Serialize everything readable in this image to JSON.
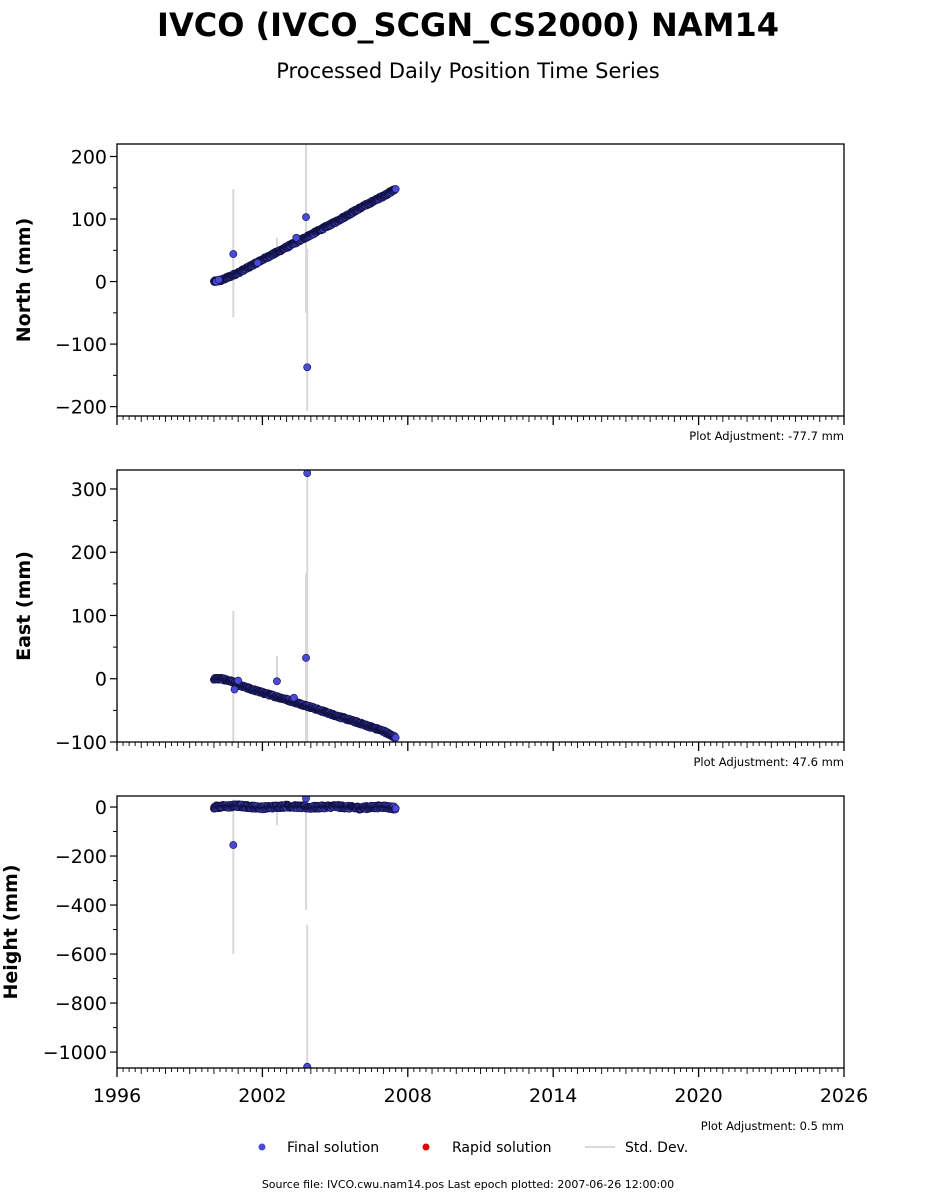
{
  "title": "IVCO (IVCO_SCGN_CS2000) NAM14",
  "subtitle": "Processed Daily Position Time Series",
  "legend": {
    "final": "Final solution",
    "rapid": "Rapid solution",
    "stddev": "Std. Dev."
  },
  "footer": "Source file: IVCO.cwu.nam14.pos  Last epoch plotted: 2007-06-26 12:00:00",
  "colors": {
    "final": "#4a4ad8",
    "final_edge": "#101040",
    "rapid": "#dd0000",
    "stddev": "#d8d8d8"
  },
  "chart_data": [
    {
      "type": "scatter",
      "ylabel": "North (mm)",
      "adjustment": "Plot Adjustment: -77.7 mm",
      "xlim": [
        1996,
        2026
      ],
      "ylim": [
        -215,
        220
      ],
      "yticks": [
        -200,
        -100,
        0,
        100,
        200
      ],
      "yticklabels": [
        "−200",
        "−100",
        "0",
        "100",
        "200"
      ],
      "trend": [
        [
          2000.0,
          0
        ],
        [
          2000.3,
          2
        ],
        [
          2001.0,
          14
        ],
        [
          2002.0,
          35
        ],
        [
          2003.0,
          55
        ],
        [
          2004.0,
          75
        ],
        [
          2005.0,
          95
        ],
        [
          2006.0,
          117
        ],
        [
          2007.0,
          137
        ],
        [
          2007.5,
          148
        ]
      ],
      "outliers": [
        [
          2000.1,
          0
        ],
        [
          2000.2,
          3
        ],
        [
          2000.8,
          44
        ],
        [
          2001.8,
          30
        ],
        [
          2003.4,
          70
        ],
        [
          2003.8,
          103
        ],
        [
          2003.85,
          -137
        ]
      ],
      "errorbars": [
        [
          2000.8,
          -57,
          148
        ],
        [
          2002.6,
          38,
          70
        ],
        [
          2003.8,
          -50,
          220
        ],
        [
          2003.85,
          -207,
          52
        ]
      ]
    },
    {
      "type": "scatter",
      "ylabel": "East (mm)",
      "adjustment": "Plot Adjustment: 47.6 mm",
      "xlim": [
        1996,
        2026
      ],
      "ylim": [
        -100,
        330
      ],
      "yticks": [
        -100,
        0,
        100,
        200,
        300
      ],
      "yticklabels": [
        "−100",
        "0",
        "100",
        "200",
        "300"
      ],
      "trend": [
        [
          2000.0,
          0
        ],
        [
          2000.3,
          0
        ],
        [
          2000.8,
          -5
        ],
        [
          2001.0,
          -10
        ],
        [
          2002.0,
          -22
        ],
        [
          2003.0,
          -33
        ],
        [
          2004.0,
          -45
        ],
        [
          2005.0,
          -58
        ],
        [
          2006.0,
          -70
        ],
        [
          2007.0,
          -83
        ],
        [
          2007.5,
          -93
        ]
      ],
      "outliers": [
        [
          2000.85,
          -17
        ],
        [
          2001.0,
          -3
        ],
        [
          2002.6,
          -4
        ],
        [
          2003.3,
          -30
        ],
        [
          2003.8,
          33
        ],
        [
          2003.85,
          325
        ]
      ],
      "errorbars": [
        [
          2000.8,
          -100,
          107
        ],
        [
          2002.6,
          -10,
          36
        ],
        [
          2003.8,
          -100,
          166
        ],
        [
          2003.85,
          -100,
          330
        ]
      ]
    },
    {
      "type": "scatter",
      "ylabel": "Height (mm)",
      "adjustment": "Plot Adjustment: 0.5 mm",
      "xlim": [
        1996,
        2026
      ],
      "ylim": [
        -1065,
        45
      ],
      "yticks": [
        -1000,
        -800,
        -600,
        -400,
        -200,
        0
      ],
      "yticklabels": [
        "−1000",
        "−800",
        "−600",
        "−400",
        "−200",
        "0"
      ],
      "xticks": [
        1996,
        2002,
        2008,
        2014,
        2020,
        2026
      ],
      "xticklabels": [
        "1996",
        "2002",
        "2008",
        "2014",
        "2020",
        "2026"
      ],
      "trend": [
        [
          2000.0,
          0
        ],
        [
          2001.0,
          5
        ],
        [
          2002.0,
          -3
        ],
        [
          2003.0,
          4
        ],
        [
          2004.0,
          -2
        ],
        [
          2005.0,
          3
        ],
        [
          2006.0,
          -4
        ],
        [
          2007.0,
          2
        ],
        [
          2007.5,
          -5
        ]
      ],
      "outliers": [
        [
          2000.8,
          -155
        ],
        [
          2003.8,
          35
        ],
        [
          2003.85,
          -1060
        ]
      ],
      "errorbars": [
        [
          2000.8,
          -600,
          30
        ],
        [
          2002.6,
          -75,
          20
        ],
        [
          2003.8,
          -420,
          45
        ],
        [
          2003.85,
          -1065,
          -480
        ]
      ]
    }
  ]
}
